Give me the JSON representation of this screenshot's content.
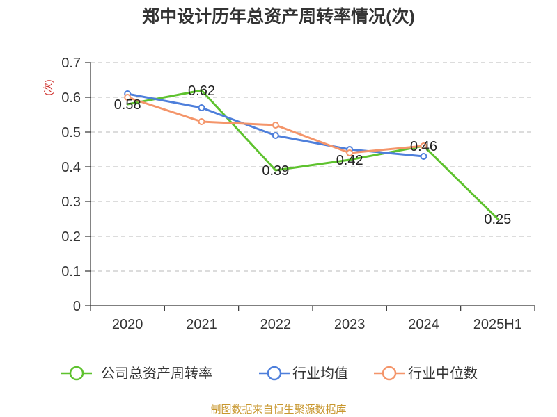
{
  "chart_data": {
    "type": "line",
    "title": "郑中设计历年总资产周转率情况(次)",
    "xlabel": "",
    "ylabel": "(次)",
    "ylim": [
      0,
      0.7
    ],
    "yticks": [
      "0",
      "0.1",
      "0.2",
      "0.3",
      "0.4",
      "0.5",
      "0.6",
      "0.7"
    ],
    "categories": [
      "2020",
      "2021",
      "2022",
      "2023",
      "2024",
      "2025H1"
    ],
    "series": [
      {
        "name": "公司总资产周转率",
        "color": "#5ec22e",
        "values": [
          0.58,
          0.62,
          0.39,
          0.42,
          0.46,
          0.25
        ],
        "data_labels": [
          "0.58",
          "0.62",
          "0.39",
          "0.42",
          "0.46",
          "0.25"
        ],
        "markers": false
      },
      {
        "name": "行业均值",
        "color": "#4e7fdb",
        "values": [
          0.61,
          0.57,
          0.49,
          0.45,
          0.43,
          null
        ],
        "markers": true
      },
      {
        "name": "行业中位数",
        "color": "#f4956a",
        "values": [
          0.6,
          0.53,
          0.52,
          0.44,
          0.46,
          null
        ],
        "markers": true
      }
    ],
    "grid": true,
    "grid_style": "dashed",
    "legend_position": "bottom"
  },
  "footer": {
    "source": "制图数据来自恒生聚源数据库"
  },
  "colors": {
    "ylabel": "#d0312d",
    "footer": "#c8972e",
    "axis": "#333333",
    "grid": "#c8c8c8"
  }
}
